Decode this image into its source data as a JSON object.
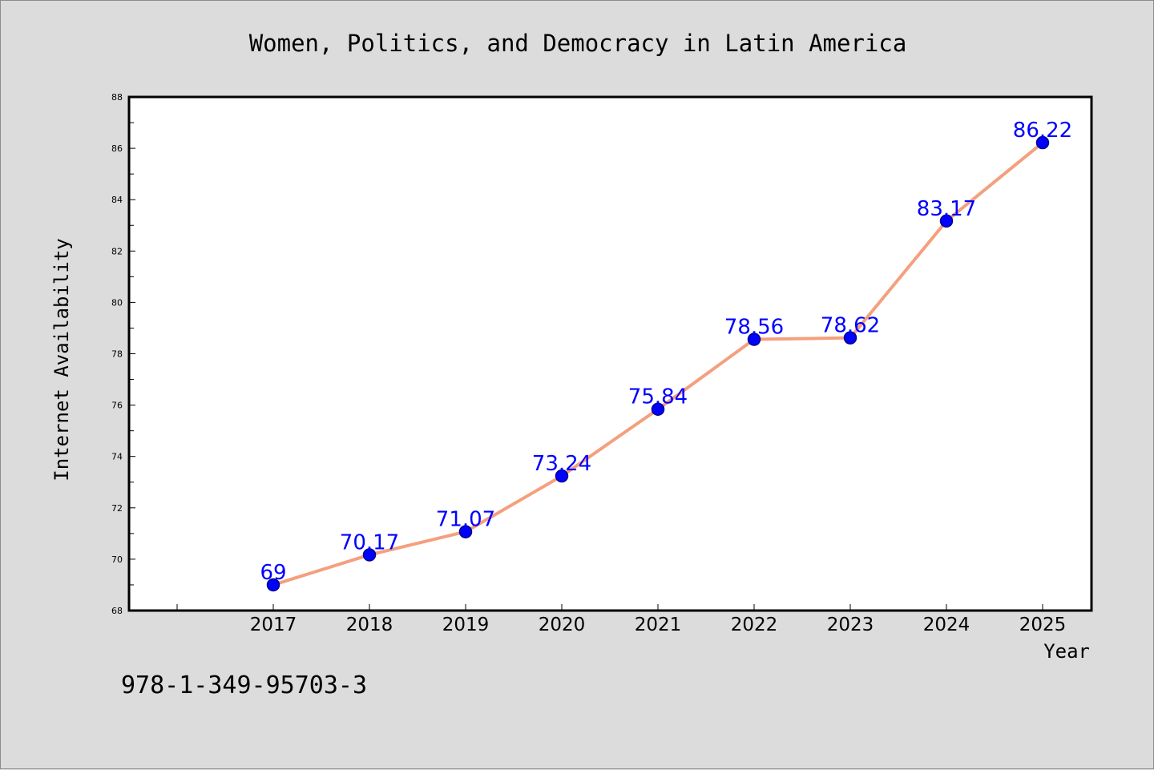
{
  "chart_data": {
    "type": "line",
    "title": "Women, Politics, and Democracy in Latin America",
    "xlabel": "Year",
    "ylabel": "Internet Availability",
    "x": [
      "2017",
      "2018",
      "2019",
      "2020",
      "2021",
      "2022",
      "2023",
      "2024",
      "2025"
    ],
    "values": [
      69,
      70.17,
      71.07,
      73.24,
      75.84,
      78.56,
      78.62,
      83.17,
      86.22
    ],
    "data_labels": [
      "69",
      "70.17",
      "71.07",
      "73.24",
      "75.84",
      "78.56",
      "78.62",
      "83.17",
      "86.22"
    ],
    "ylim": [
      68,
      88
    ],
    "yticks": [
      "68",
      "70",
      "72",
      "74",
      "76",
      "78",
      "80",
      "82",
      "84",
      "86",
      "88"
    ],
    "grid": false,
    "legend": "none",
    "colors": {
      "line": "#f4a07e",
      "marker": "#0000ff",
      "label": "#0000ff",
      "background": "#dcdcdc",
      "plot_background": "#ffffff"
    }
  },
  "footer_note": "978-1-349-95703-3"
}
